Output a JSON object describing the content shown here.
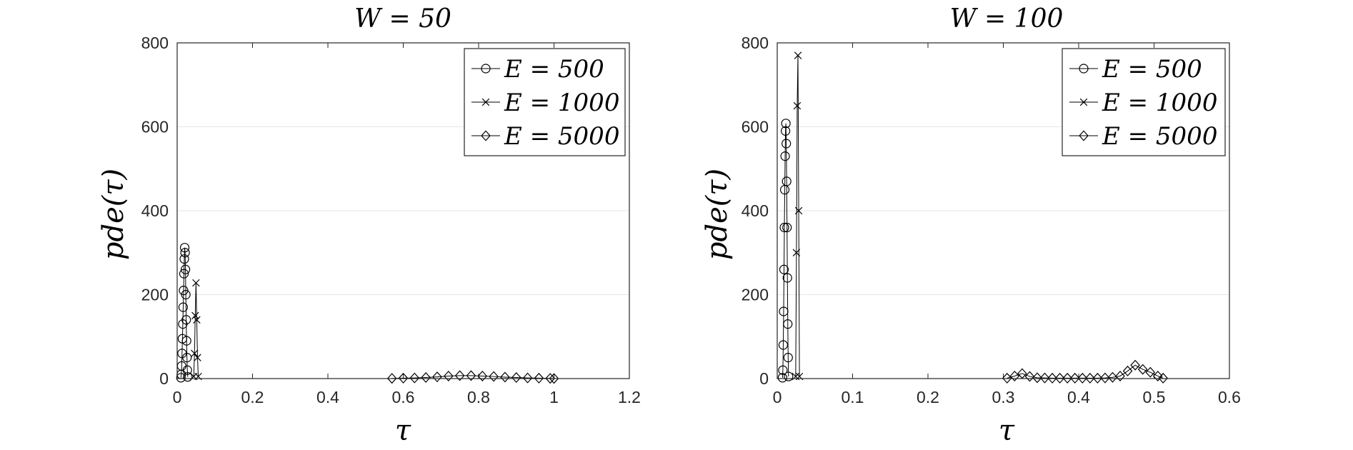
{
  "figure": {
    "panels": [
      {
        "title": "W = 50",
        "xlabel": "τ",
        "ylabel": "pde(τ)",
        "xticks": [
          "0",
          "0.2",
          "0.4",
          "0.6",
          "0.8",
          "1",
          "1.2"
        ],
        "yticks": [
          "0",
          "200",
          "400",
          "600",
          "800"
        ],
        "legend": [
          "E = 500",
          "E = 1000",
          "E = 5000"
        ]
      },
      {
        "title": "W = 100",
        "xlabel": "τ",
        "ylabel": "pde(τ)",
        "xticks": [
          "0",
          "0.1",
          "0.2",
          "0.3",
          "0.4",
          "0.5",
          "0.6"
        ],
        "yticks": [
          "0",
          "200",
          "400",
          "600",
          "800"
        ],
        "legend": [
          "E = 500",
          "E = 1000",
          "E = 5000"
        ]
      }
    ]
  },
  "chart_data": [
    {
      "type": "line",
      "title": "W = 50",
      "xlabel": "τ",
      "ylabel": "pde(τ)",
      "xlim": [
        0,
        1.2
      ],
      "ylim": [
        0,
        800
      ],
      "grid": "y-major",
      "legend_position": "top-right",
      "series": [
        {
          "name": "E = 500",
          "marker": "circle",
          "x": [
            0.01,
            0.011,
            0.012,
            0.013,
            0.014,
            0.015,
            0.016,
            0.017,
            0.018,
            0.019,
            0.02,
            0.021,
            0.022,
            0.023,
            0.024,
            0.025,
            0.026,
            0.027,
            0.028
          ],
          "y": [
            2,
            10,
            30,
            60,
            95,
            130,
            170,
            210,
            250,
            285,
            312,
            300,
            260,
            200,
            140,
            90,
            50,
            20,
            4
          ]
        },
        {
          "name": "E = 1000",
          "marker": "x",
          "x": [
            0.044,
            0.046,
            0.048,
            0.05,
            0.052,
            0.054,
            0.056
          ],
          "y": [
            5,
            60,
            150,
            228,
            140,
            50,
            5
          ]
        },
        {
          "name": "E = 5000",
          "marker": "diamond",
          "x": [
            0.57,
            0.6,
            0.63,
            0.66,
            0.69,
            0.72,
            0.75,
            0.78,
            0.81,
            0.84,
            0.87,
            0.9,
            0.93,
            0.96,
            0.99,
            1.0
          ],
          "y": [
            0.5,
            1,
            1.5,
            2.5,
            4,
            6,
            7,
            7,
            6,
            5,
            3.5,
            2.5,
            1.5,
            1,
            0.5,
            0.3
          ]
        }
      ]
    },
    {
      "type": "line",
      "title": "W = 100",
      "xlabel": "τ",
      "ylabel": "pde(τ)",
      "xlim": [
        0,
        0.6
      ],
      "ylim": [
        0,
        800
      ],
      "grid": "y-major",
      "legend_position": "top-right",
      "series": [
        {
          "name": "E = 500",
          "marker": "circle",
          "x": [
            0.007,
            0.0075,
            0.008,
            0.0085,
            0.009,
            0.0095,
            0.01,
            0.0105,
            0.011,
            0.0115,
            0.012,
            0.0125,
            0.013,
            0.0135,
            0.014,
            0.0145,
            0.015
          ],
          "y": [
            2,
            20,
            80,
            160,
            260,
            360,
            450,
            530,
            590,
            608,
            560,
            470,
            360,
            240,
            130,
            50,
            5
          ]
        },
        {
          "name": "E = 1000",
          "marker": "x",
          "x": [
            0.0245,
            0.0255,
            0.0265,
            0.0275,
            0.0285,
            0.0295
          ],
          "y": [
            5,
            300,
            650,
            770,
            400,
            5
          ]
        },
        {
          "name": "E = 5000",
          "marker": "diamond",
          "x": [
            0.305,
            0.315,
            0.325,
            0.335,
            0.345,
            0.355,
            0.365,
            0.375,
            0.385,
            0.395,
            0.405,
            0.415,
            0.425,
            0.435,
            0.445,
            0.455,
            0.465,
            0.475,
            0.485,
            0.495,
            0.505,
            0.512
          ],
          "y": [
            1,
            6,
            12,
            5,
            2,
            1.5,
            1,
            1,
            1,
            1,
            1,
            1,
            1,
            1.5,
            3,
            6,
            18,
            32,
            22,
            15,
            6,
            1
          ]
        }
      ]
    }
  ]
}
